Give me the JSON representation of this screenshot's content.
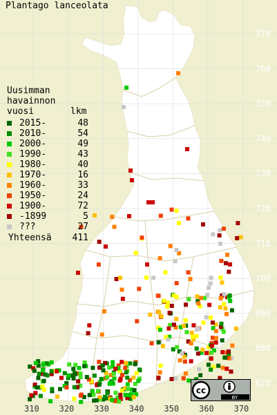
{
  "title": "Plantago lanceolata",
  "legend": {
    "heading_lines": [
      "Uusimman",
      "havainnon",
      "vuosi"
    ],
    "count_header": "lkm",
    "rows": [
      {
        "period": "2015-",
        "count": "48",
        "color": "#006400"
      },
      {
        "period": "2010-",
        "count": "54",
        "color": "#008c00"
      },
      {
        "period": "2000-",
        "count": "49",
        "color": "#00c800"
      },
      {
        "period": "1990-",
        "count": "43",
        "color": "#40e020"
      },
      {
        "period": "1980-",
        "count": "40",
        "color": "#ffff00"
      },
      {
        "period": "1970-",
        "count": "16",
        "color": "#ffc000"
      },
      {
        "period": "1960-",
        "count": "33",
        "color": "#ff8000"
      },
      {
        "period": "1950-",
        "count": "24",
        "color": "#f04000"
      },
      {
        "period": "1900-",
        "count": "72",
        "color": "#cc0000"
      },
      {
        "period": "-1899",
        "count": "5",
        "color": "#a00000"
      },
      {
        "period": "???",
        "count": "27",
        "color": "#c8c8c8"
      }
    ],
    "total_label": "Yhteensä",
    "total_count": "411"
  },
  "axis": {
    "y_ticks": [
      "770",
      "760",
      "750",
      "740",
      "730",
      "720",
      "710",
      "700",
      "690",
      "680",
      "670"
    ],
    "x_ticks": [
      "310",
      "320",
      "330",
      "340",
      "350",
      "360",
      "370"
    ]
  },
  "colors": {
    "background": "#f0f0d0",
    "land": "#ffffff",
    "grid": "#dcdcdc",
    "border": "#d8d0a8"
  },
  "license_badge": {
    "icon": "cc-by-icon",
    "text": "BY"
  }
}
